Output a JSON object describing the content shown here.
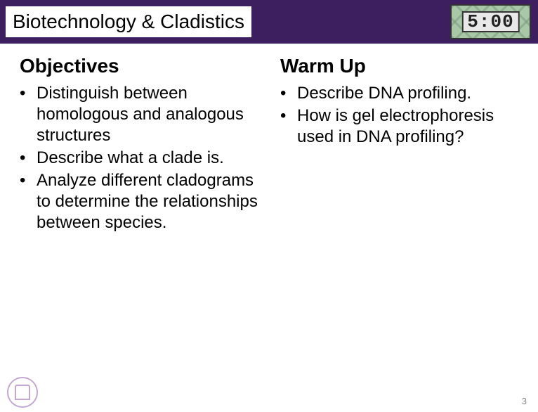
{
  "header": {
    "title": "Biotechnology & Cladistics",
    "timer_value": "5:00",
    "header_bg": "#3d1e5f",
    "title_bg": "#ffffff",
    "title_color": "#000000"
  },
  "left": {
    "heading": "Objectives",
    "items": [
      "Distinguish between homologous and analogous structures",
      "Describe what a clade is.",
      "Analyze different cladograms to determine the relationships between species."
    ]
  },
  "right": {
    "heading": "Warm Up",
    "items": [
      "Describe DNA profiling.",
      "How is gel electrophoresis used in DNA profiling?"
    ]
  },
  "footer": {
    "page_number": "3"
  }
}
